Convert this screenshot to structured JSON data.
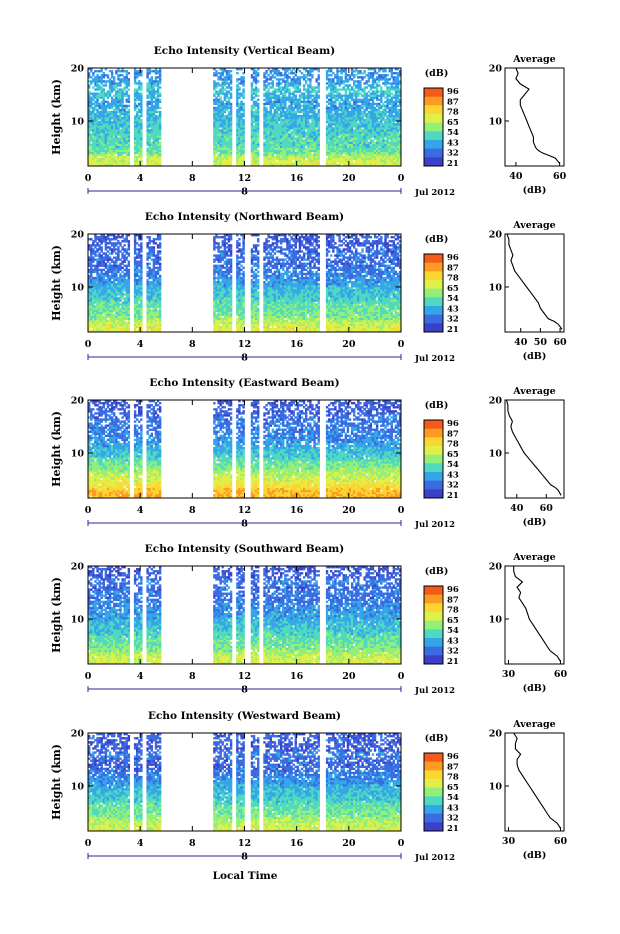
{
  "figure": {
    "x_axis_label": "Local Time",
    "date_label": "Jul 2012",
    "day_marker": "8"
  },
  "colorbar": {
    "unit_label": "(dB)",
    "tick_labels": [
      "96",
      "87",
      "78",
      "65",
      "54",
      "43",
      "32",
      "21"
    ],
    "colors": [
      "#f35a1c",
      "#fb9b22",
      "#fbd532",
      "#dff04a",
      "#94ef78",
      "#4ed9c0",
      "#34a6e8",
      "#3a6be2",
      "#3b40c8"
    ]
  },
  "chart_data": [
    {
      "type": "heatmap",
      "title": "Echo Intensity (Vertical Beam)",
      "ylabel": "Height (km)",
      "xlabel": "Local Time",
      "x_ticks": [
        "0",
        "4",
        "8",
        "12",
        "16",
        "20",
        "0"
      ],
      "y_ticks": [
        "20",
        "10"
      ],
      "xlim": [
        0,
        24
      ],
      "ylim": [
        1.5,
        20
      ],
      "clim": [
        21,
        96
      ],
      "gaps_hours": [
        [
          3.2,
          3.5
        ],
        [
          4.1,
          4.4
        ],
        [
          5.6,
          9.6
        ],
        [
          11.0,
          11.4
        ],
        [
          12.0,
          12.4
        ],
        [
          13.1,
          13.5
        ],
        [
          17.7,
          18.2
        ]
      ],
      "profile": {
        "title": "Average",
        "xlabel": "(dB)",
        "x_ticks": [
          "40",
          "60"
        ],
        "y_ticks": [
          "20",
          "10"
        ],
        "xlim": [
          35,
          62
        ],
        "ylim": [
          1.5,
          20
        ],
        "heights_km": [
          2,
          2.5,
          3,
          3.5,
          4,
          4.5,
          5,
          6,
          7,
          8,
          9,
          10,
          11,
          12,
          13,
          14,
          15,
          16,
          17,
          18,
          19,
          20
        ],
        "values_db": [
          60,
          59,
          58,
          55,
          52,
          50,
          49,
          48,
          48,
          47,
          46,
          45,
          44,
          43,
          42,
          42,
          44,
          46,
          42,
          40,
          41,
          40
        ]
      }
    },
    {
      "type": "heatmap",
      "title": "Echo Intensity (Northward Beam)",
      "ylabel": "Height (km)",
      "xlabel": "Local Time",
      "x_ticks": [
        "0",
        "4",
        "8",
        "12",
        "16",
        "20",
        "0"
      ],
      "y_ticks": [
        "20",
        "10"
      ],
      "xlim": [
        0,
        24
      ],
      "ylim": [
        1.5,
        20
      ],
      "clim": [
        21,
        96
      ],
      "gaps_hours": [
        [
          3.2,
          3.5
        ],
        [
          4.1,
          4.4
        ],
        [
          5.6,
          9.6
        ],
        [
          11.0,
          11.4
        ],
        [
          12.0,
          12.4
        ],
        [
          13.1,
          13.5
        ],
        [
          17.7,
          18.2
        ]
      ],
      "profile": {
        "title": "Average",
        "xlabel": "(dB)",
        "x_ticks": [
          "40",
          "50",
          "60"
        ],
        "y_ticks": [
          "20",
          "10"
        ],
        "xlim": [
          32,
          62
        ],
        "ylim": [
          1.5,
          20
        ],
        "heights_km": [
          2,
          2.5,
          3,
          3.5,
          4,
          5,
          6,
          7,
          8,
          9,
          10,
          11,
          12,
          13,
          14,
          15,
          16,
          17,
          18,
          19,
          20
        ],
        "values_db": [
          61,
          60,
          59,
          57,
          54,
          52,
          50,
          49,
          47,
          45,
          43,
          41,
          39,
          37,
          36,
          35,
          36,
          35,
          34,
          34,
          33
        ]
      }
    },
    {
      "type": "heatmap",
      "title": "Echo Intensity (Eastward Beam)",
      "ylabel": "Height (km)",
      "xlabel": "Local Time",
      "x_ticks": [
        "0",
        "4",
        "8",
        "12",
        "16",
        "20",
        "0"
      ],
      "y_ticks": [
        "20",
        "10"
      ],
      "xlim": [
        0,
        24
      ],
      "ylim": [
        1.5,
        20
      ],
      "clim": [
        21,
        96
      ],
      "gaps_hours": [
        [
          3.2,
          3.5
        ],
        [
          4.1,
          4.4
        ],
        [
          5.6,
          9.6
        ],
        [
          11.0,
          11.4
        ],
        [
          12.0,
          12.4
        ],
        [
          13.1,
          13.5
        ],
        [
          17.7,
          18.2
        ]
      ],
      "profile": {
        "title": "Average",
        "xlabel": "(dB)",
        "x_ticks": [
          "40",
          "60"
        ],
        "y_ticks": [
          "20",
          "10"
        ],
        "xlim": [
          32,
          72
        ],
        "ylim": [
          1.5,
          20
        ],
        "heights_km": [
          2,
          2.5,
          3,
          3.5,
          4,
          5,
          6,
          7,
          8,
          9,
          10,
          11,
          12,
          13,
          14,
          15,
          16,
          17,
          18,
          19,
          20
        ],
        "values_db": [
          70,
          69,
          68,
          66,
          63,
          60,
          57,
          54,
          51,
          48,
          45,
          43,
          41,
          39,
          37,
          36,
          37,
          35,
          34,
          34,
          33
        ]
      }
    },
    {
      "type": "heatmap",
      "title": "Echo Intensity (Southward Beam)",
      "ylabel": "Height (km)",
      "xlabel": "Local Time",
      "x_ticks": [
        "0",
        "4",
        "8",
        "12",
        "16",
        "20",
        "0"
      ],
      "y_ticks": [
        "20",
        "10"
      ],
      "xlim": [
        0,
        24
      ],
      "ylim": [
        1.5,
        20
      ],
      "clim": [
        21,
        96
      ],
      "gaps_hours": [
        [
          3.2,
          3.5
        ],
        [
          4.1,
          4.4
        ],
        [
          5.6,
          9.6
        ],
        [
          11.0,
          11.4
        ],
        [
          12.0,
          12.4
        ],
        [
          13.1,
          13.5
        ],
        [
          17.7,
          18.2
        ]
      ],
      "profile": {
        "title": "Average",
        "xlabel": "(dB)",
        "x_ticks": [
          "30",
          "60"
        ],
        "y_ticks": [
          "20",
          "10"
        ],
        "xlim": [
          28,
          62
        ],
        "ylim": [
          1.5,
          20
        ],
        "heights_km": [
          2,
          2.5,
          3,
          3.5,
          4,
          5,
          6,
          7,
          8,
          9,
          10,
          11,
          12,
          13,
          14,
          15,
          16,
          17,
          18,
          19,
          20
        ],
        "values_db": [
          60,
          59,
          58,
          56,
          54,
          52,
          50,
          48,
          46,
          44,
          42,
          41,
          40,
          38,
          36,
          37,
          35,
          38,
          34,
          33,
          33
        ]
      }
    },
    {
      "type": "heatmap",
      "title": "Echo Intensity (Westward Beam)",
      "ylabel": "Height (km)",
      "xlabel": "Local Time",
      "x_ticks": [
        "0",
        "4",
        "8",
        "12",
        "16",
        "20",
        "0"
      ],
      "y_ticks": [
        "20",
        "10"
      ],
      "xlim": [
        0,
        24
      ],
      "ylim": [
        1.5,
        20
      ],
      "clim": [
        21,
        96
      ],
      "gaps_hours": [
        [
          3.2,
          3.5
        ],
        [
          4.1,
          4.4
        ],
        [
          5.6,
          9.6
        ],
        [
          11.0,
          11.4
        ],
        [
          12.0,
          12.4
        ],
        [
          13.1,
          13.5
        ],
        [
          17.7,
          18.2
        ]
      ],
      "profile": {
        "title": "Average",
        "xlabel": "(dB)",
        "x_ticks": [
          "30",
          "60"
        ],
        "y_ticks": [
          "20",
          "10"
        ],
        "xlim": [
          28,
          62
        ],
        "ylim": [
          1.5,
          20
        ],
        "heights_km": [
          2,
          2.5,
          3,
          3.5,
          4,
          5,
          6,
          7,
          8,
          9,
          10,
          11,
          12,
          13,
          14,
          15,
          16,
          17,
          18,
          19,
          20
        ],
        "values_db": [
          60,
          59,
          58,
          56,
          54,
          52,
          50,
          48,
          46,
          44,
          42,
          40,
          38,
          36,
          35,
          35,
          37,
          34,
          34,
          35,
          33
        ]
      }
    }
  ]
}
